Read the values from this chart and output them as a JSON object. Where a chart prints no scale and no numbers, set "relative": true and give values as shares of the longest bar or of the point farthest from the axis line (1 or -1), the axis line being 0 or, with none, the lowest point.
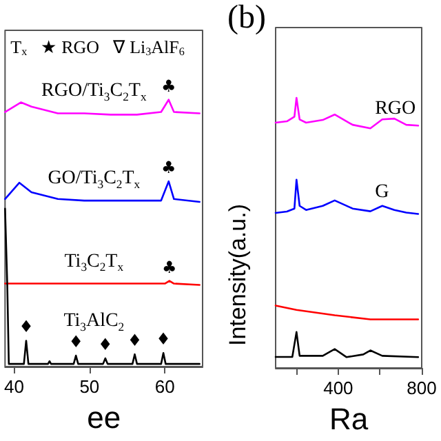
{
  "chart_data": [
    {
      "type": "line",
      "xlabel": "ee",
      "relative": true,
      "xlim": [
        38.8,
        65
      ],
      "xticks": [
        40,
        50,
        60
      ],
      "grid": false,
      "legend": false,
      "marker": "none",
      "line_style": "solid",
      "annotations": [
        "T$_{x}$   ★ RGO   ∇ Li$_{3}$AlF$_{6}$",
        {
          "text": "♣",
          "x": 60.5,
          "y": 1.0
        },
        {
          "text": "♣",
          "x": 60.5,
          "y": 0.694
        },
        {
          "text": "♣",
          "x": 60.6,
          "y": 0.321
        },
        {
          "text": "♦",
          "x": 41.6,
          "y": 0.097
        },
        {
          "text": "♦",
          "x": 48.2,
          "y": 0.041
        },
        {
          "text": "♦",
          "x": 52.1,
          "y": 0.031
        },
        {
          "text": "♦",
          "x": 56.0,
          "y": 0.046
        },
        {
          "text": "♦",
          "x": 59.8,
          "y": 0.051
        }
      ],
      "series": [
        {
          "name": "RGO/Ti$_{3}$C$_{2}$T$_{x}$",
          "color": "#ff00ff",
          "x": [
            38.8,
            40.9,
            42.3,
            45.8,
            49.3,
            52.8,
            56.3,
            59.5,
            60.5,
            61.2,
            64.6
          ],
          "values": [
            0.954,
            0.99,
            0.974,
            0.949,
            0.949,
            0.944,
            0.944,
            0.954,
            1.0,
            0.954,
            0.949
          ]
        },
        {
          "name": "GO/Ti$_{3}$C$_{2}$T$_{x}$",
          "color": "#0000ff",
          "x": [
            38.8,
            40.7,
            42.3,
            45.8,
            49.3,
            52.8,
            56.3,
            59.5,
            60.5,
            61.2,
            64.6
          ],
          "values": [
            0.628,
            0.689,
            0.653,
            0.628,
            0.622,
            0.622,
            0.622,
            0.622,
            0.694,
            0.628,
            0.617
          ]
        },
        {
          "name": "Ti$_{3}$C$_{2}$T$_{x}$",
          "color": "#ff0000",
          "x": [
            38.8,
            50,
            60.0,
            60.6,
            61.2,
            64.6
          ],
          "values": [
            0.311,
            0.311,
            0.311,
            0.321,
            0.311,
            0.306
          ]
        },
        {
          "name": "Ti$_{3}$AlC$_{2}$",
          "color": "#000000",
          "x": [
            38.8,
            39.1,
            39.3,
            41.3,
            41.6,
            41.9,
            44.5,
            44.7,
            44.9,
            47.9,
            48.2,
            48.5,
            51.8,
            52.1,
            52.4,
            55.7,
            56.0,
            56.3,
            59.5,
            59.8,
            60.1,
            64.6
          ],
          "values": [
            0.592,
            0.3,
            0.01,
            0.01,
            0.097,
            0.01,
            0.01,
            0.02,
            0.01,
            0.01,
            0.041,
            0.01,
            0.01,
            0.031,
            0.01,
            0.01,
            0.046,
            0.01,
            0.01,
            0.051,
            0.01,
            0.01
          ]
        }
      ]
    },
    {
      "type": "line",
      "title": "(b)",
      "xlabel": "Ra",
      "ylabel": "Intensity(a.u.)",
      "relative": true,
      "xlim": [
        100,
        800
      ],
      "xticks": [
        {
          "value": 200,
          "label": null
        },
        400,
        {
          "value": 600,
          "label": null
        },
        800
      ],
      "grid": false,
      "legend": false,
      "marker": "none",
      "line_style": "solid",
      "series": [
        {
          "name": "RGO",
          "color": "#ff00ff",
          "x": [
            100,
            154,
            190,
            200,
            215,
            246,
            326,
            383,
            469,
            554,
            611,
            669,
            726,
            783
          ],
          "values": [
            0.908,
            0.913,
            0.93,
            1.0,
            0.92,
            0.908,
            0.918,
            0.938,
            0.9,
            0.887,
            0.92,
            0.923,
            0.9,
            0.897
          ]
        },
        {
          "name": "G",
          "color": "#0000ff",
          "x": [
            100,
            154,
            190,
            200,
            215,
            246,
            326,
            383,
            469,
            554,
            611,
            669,
            726,
            783
          ],
          "values": [
            0.574,
            0.579,
            0.59,
            0.697,
            0.6,
            0.585,
            0.6,
            0.62,
            0.59,
            0.58,
            0.6,
            0.585,
            0.575,
            0.57
          ]
        },
        {
          "color": "#ff0000",
          "x": [
            100,
            200,
            383,
            554,
            783
          ],
          "values": [
            0.231,
            0.215,
            0.195,
            0.18,
            0.18
          ]
        },
        {
          "color": "#000000",
          "x": [
            100,
            180,
            200,
            215,
            326,
            383,
            440,
            520,
            554,
            611,
            783
          ],
          "values": [
            0.041,
            0.041,
            0.133,
            0.045,
            0.045,
            0.07,
            0.04,
            0.05,
            0.065,
            0.045,
            0.04
          ]
        }
      ]
    }
  ]
}
